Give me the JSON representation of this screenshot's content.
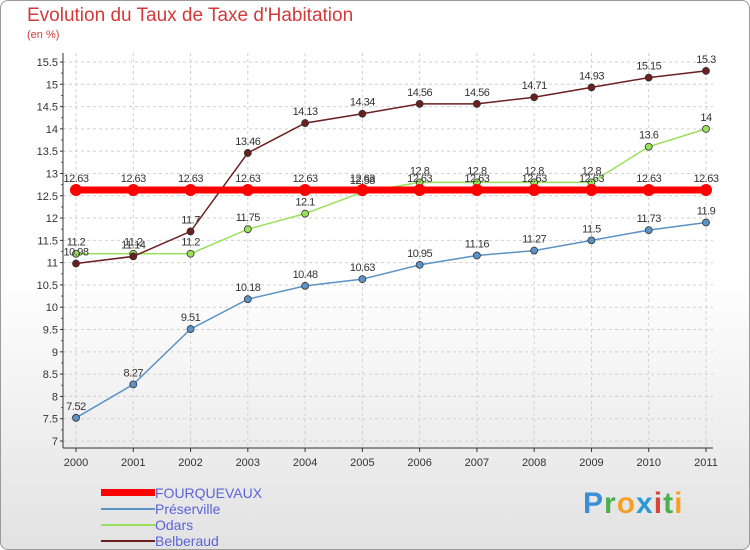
{
  "chart_data": {
    "type": "line",
    "title": "Evolution du Taux de Taxe d'Habitation",
    "subtitle": "(en %)",
    "categories": [
      "2000",
      "2001",
      "2002",
      "2003",
      "2004",
      "2005",
      "2006",
      "2007",
      "2008",
      "2009",
      "2010",
      "2011"
    ],
    "ylim": [
      7,
      15.5
    ],
    "yticks": [
      "7",
      "7.5",
      "8",
      "8.5",
      "9",
      "9.5",
      "10",
      "10.5",
      "11",
      "11.5",
      "12",
      "12.5",
      "13",
      "13.5",
      "14",
      "14.5",
      "15",
      "15.5"
    ],
    "grid": true,
    "legend_position": "bottom-left",
    "series": [
      {
        "name": "FOURQUEVAUX",
        "color": "#ff0000",
        "values": [
          12.63,
          12.63,
          12.63,
          12.63,
          12.63,
          12.63,
          12.63,
          12.63,
          12.63,
          12.63,
          12.63,
          12.63
        ],
        "labels": [
          "12.63",
          "12.63",
          "12.63",
          "12.63",
          "12.63",
          "12.63",
          "12.63",
          "12.63",
          "12.63",
          "12.63",
          "12.63",
          "12.63"
        ]
      },
      {
        "name": "Préserville",
        "color": "#5b93c7",
        "values": [
          7.52,
          8.27,
          9.51,
          10.18,
          10.48,
          10.63,
          10.95,
          11.16,
          11.27,
          11.5,
          11.73,
          11.9
        ],
        "labels": [
          "7.52",
          "8.27",
          "9.51",
          "10.18",
          "10.48",
          "10.63",
          "10.95",
          "11.16",
          "11.27",
          "11.5",
          "11.73",
          "11.9"
        ]
      },
      {
        "name": "Odars",
        "color": "#99e05b",
        "values": [
          11.2,
          11.2,
          11.2,
          11.75,
          12.1,
          12.58,
          12.8,
          12.8,
          12.8,
          12.8,
          13.6,
          14
        ],
        "labels": [
          "11.2",
          "11.2",
          "11.2",
          "11.75",
          "12.1",
          "12.58",
          "12.8",
          "12.8",
          "12.8",
          "12.8",
          "13.6",
          "14"
        ]
      },
      {
        "name": "Belberaud",
        "color": "#6b1f1f",
        "values": [
          10.98,
          11.14,
          11.7,
          13.46,
          14.13,
          14.34,
          14.56,
          14.56,
          14.71,
          14.93,
          15.15,
          15.3
        ],
        "labels": [
          "10.98",
          "11.14",
          "11.7",
          "13.46",
          "14.13",
          "14.34",
          "14.56",
          "14.56",
          "14.71",
          "14.93",
          "15.15",
          "15.3"
        ]
      }
    ]
  },
  "logo_text": "Proxiti"
}
